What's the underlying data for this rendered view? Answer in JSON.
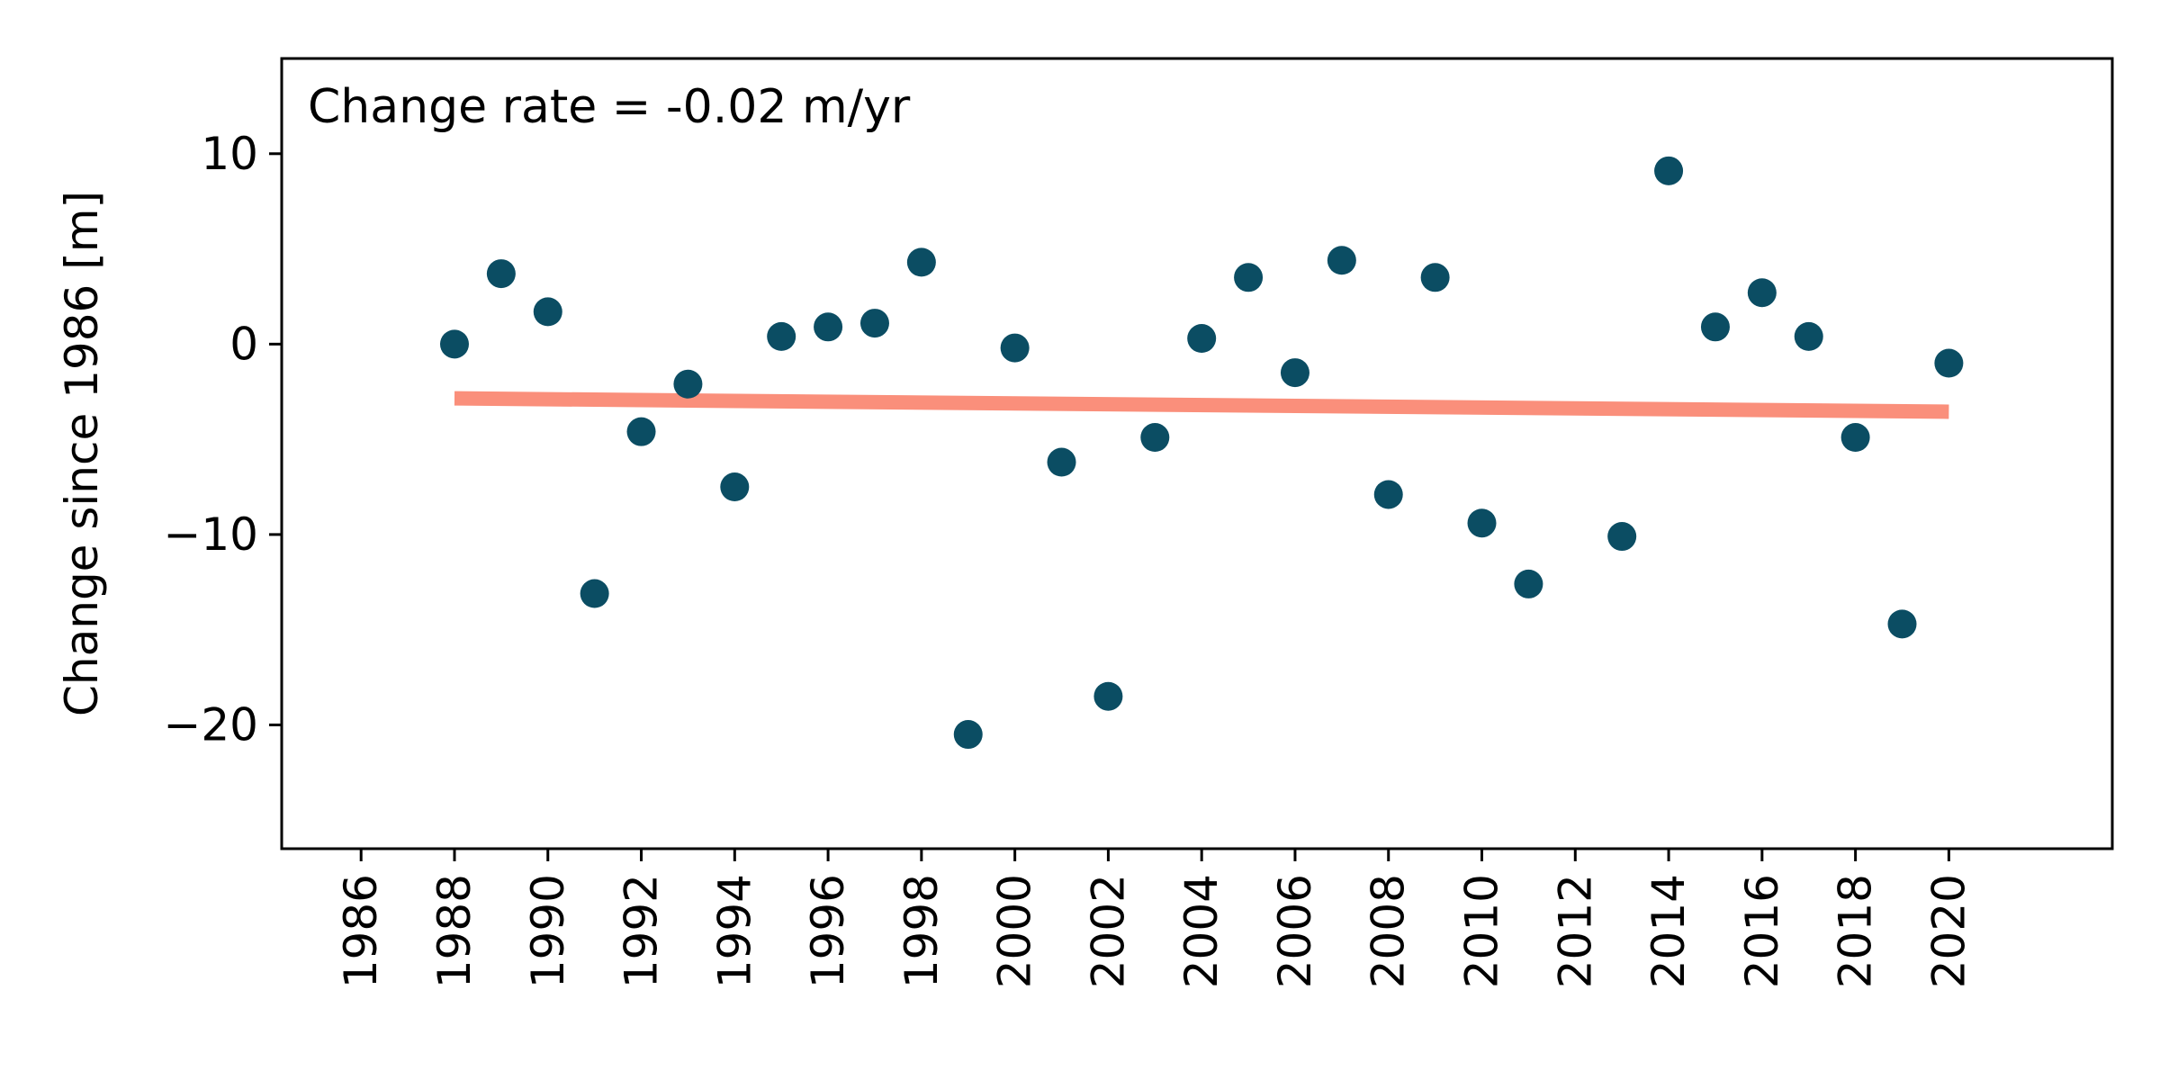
{
  "chart_data": {
    "type": "scatter",
    "title": "",
    "xlabel": "",
    "ylabel": "Change since 1986 [m]",
    "annotation": "Change rate = -0.02 m/yr",
    "xlim": [
      1984.3,
      2023.5
    ],
    "ylim": [
      -26.5,
      15
    ],
    "x_ticks": [
      1986,
      1988,
      1990,
      1992,
      1994,
      1996,
      1998,
      2000,
      2002,
      2004,
      2006,
      2008,
      2010,
      2012,
      2014,
      2016,
      2018,
      2020
    ],
    "y_ticks": [
      10,
      0,
      -10,
      -20
    ],
    "y_tick_labels": [
      "10",
      "0",
      "−10",
      "−20"
    ],
    "grid": false,
    "series": [
      {
        "type": "scatter",
        "color": "#0b4d63",
        "points": [
          {
            "x": 1988,
            "y": 0.0
          },
          {
            "x": 1989,
            "y": 3.7
          },
          {
            "x": 1990,
            "y": 1.7
          },
          {
            "x": 1991,
            "y": -13.1
          },
          {
            "x": 1992,
            "y": -4.6
          },
          {
            "x": 1993,
            "y": -2.1
          },
          {
            "x": 1994,
            "y": -7.5
          },
          {
            "x": 1995,
            "y": 0.4
          },
          {
            "x": 1996,
            "y": 0.9
          },
          {
            "x": 1997,
            "y": 1.1
          },
          {
            "x": 1998,
            "y": 4.3
          },
          {
            "x": 1999,
            "y": -20.5
          },
          {
            "x": 2000,
            "y": -0.2
          },
          {
            "x": 2001,
            "y": -6.2
          },
          {
            "x": 2002,
            "y": -18.5
          },
          {
            "x": 2003,
            "y": -4.9
          },
          {
            "x": 2004,
            "y": 0.3
          },
          {
            "x": 2005,
            "y": 3.5
          },
          {
            "x": 2006,
            "y": -1.5
          },
          {
            "x": 2007,
            "y": 4.4
          },
          {
            "x": 2008,
            "y": -7.9
          },
          {
            "x": 2009,
            "y": 3.5
          },
          {
            "x": 2010,
            "y": -9.4
          },
          {
            "x": 2011,
            "y": -12.6
          },
          {
            "x": 2013,
            "y": -10.1
          },
          {
            "x": 2014,
            "y": 9.1
          },
          {
            "x": 2015,
            "y": 0.9
          },
          {
            "x": 2016,
            "y": 2.7
          },
          {
            "x": 2017,
            "y": 0.4
          },
          {
            "x": 2018,
            "y": -4.9
          },
          {
            "x": 2019,
            "y": -14.7
          },
          {
            "x": 2020,
            "y": -1.0
          }
        ]
      },
      {
        "type": "line",
        "color": "#fa8f7b",
        "points": [
          {
            "x": 1988,
            "y": -2.85
          },
          {
            "x": 2020,
            "y": -3.55
          }
        ]
      }
    ]
  }
}
